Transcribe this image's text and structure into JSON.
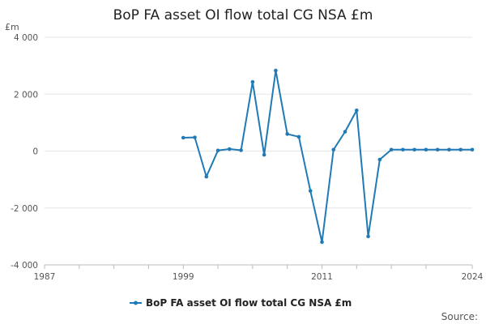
{
  "chart_data": {
    "type": "line",
    "title": "BoP FA asset OI flow total CG NSA £m",
    "y_unit_label": "£m",
    "xlim": [
      1987,
      2024
    ],
    "ylim": [
      -4000,
      4000
    ],
    "y_ticks": [
      4000,
      2000,
      0,
      -2000,
      -4000
    ],
    "y_tick_labels": [
      "4 000",
      "2 000",
      "0",
      "-2 000",
      "-4 000"
    ],
    "x_tick_labels": [
      {
        "year": 1987,
        "label": "1987"
      },
      {
        "year": 1999,
        "label": "1999"
      },
      {
        "year": 2011,
        "label": "2011"
      },
      {
        "year": 2024,
        "label": "2024"
      }
    ],
    "x_minor_ticks": [
      1990,
      1993,
      1996,
      2002,
      2005,
      2008,
      2014,
      2017,
      2020
    ],
    "grid": true,
    "legend": "bottom",
    "series": [
      {
        "name": "BoP FA asset OI flow total CG NSA £m",
        "color": "#1f7ab5",
        "x": [
          1999,
          2000,
          2001,
          2002,
          2003,
          2004,
          2005,
          2006,
          2007,
          2008,
          2009,
          2010,
          2011,
          2012,
          2013,
          2014,
          2015,
          2016,
          2017,
          2018,
          2019,
          2020,
          2021,
          2022,
          2023,
          2024
        ],
        "values": [
          470,
          480,
          -900,
          20,
          70,
          30,
          2430,
          -130,
          2830,
          600,
          500,
          -1400,
          -3200,
          50,
          680,
          1430,
          -3000,
          -300,
          50,
          50,
          50,
          50,
          50,
          50,
          50,
          50
        ]
      }
    ]
  },
  "footer": {
    "source_label": "Source:"
  }
}
